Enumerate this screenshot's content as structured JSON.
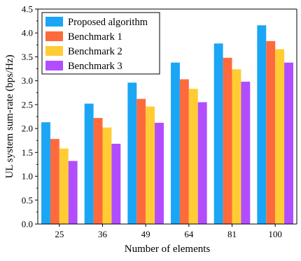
{
  "chart_data": {
    "type": "bar",
    "title": "",
    "xlabel": "Number of elements",
    "ylabel": "UL system sum-rate (bps/Hz)",
    "categories": [
      "25",
      "36",
      "49",
      "64",
      "81",
      "100"
    ],
    "ylim": [
      0,
      4.5
    ],
    "yticks": [
      "0.0",
      "0.5",
      "1.0",
      "1.5",
      "2.0",
      "2.5",
      "3.0",
      "3.5",
      "4.0",
      "4.5"
    ],
    "grid": false,
    "legend_position": "top-left",
    "series": [
      {
        "name": "Proposed algorithm",
        "color": "#1aa6f5",
        "values": [
          2.13,
          2.52,
          2.96,
          3.38,
          3.78,
          4.16
        ]
      },
      {
        "name": "Benchmark 1",
        "color": "#ff6a3d",
        "values": [
          1.78,
          2.22,
          2.62,
          3.03,
          3.48,
          3.83
        ]
      },
      {
        "name": "Benchmark 2",
        "color": "#ffcc33",
        "values": [
          1.58,
          2.02,
          2.46,
          2.83,
          3.24,
          3.66
        ]
      },
      {
        "name": "Benchmark 3",
        "color": "#b24dff",
        "values": [
          1.32,
          1.68,
          2.12,
          2.55,
          2.98,
          3.38
        ]
      }
    ]
  }
}
